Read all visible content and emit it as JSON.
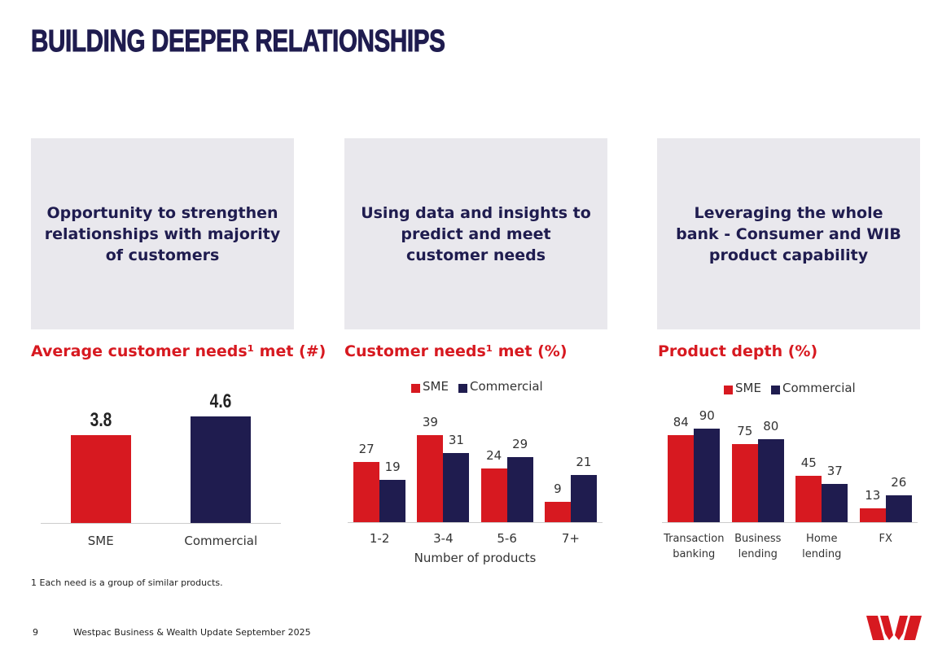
{
  "header": {
    "title": "BUILDING DEEPER RELATIONSHIPS"
  },
  "panels": [
    "Opportunity to strengthen relationships with majority of customers",
    "Using data and insights to predict and meet customer needs",
    "Leveraging the whole bank - Consumer and WIB product capability"
  ],
  "chart_data": [
    {
      "type": "bar",
      "title": "Average customer needs¹ met (#)",
      "categories": [
        "SME",
        "Commercial"
      ],
      "values": [
        3.8,
        4.6
      ],
      "colors": [
        "#d71920",
        "#1f1c4f"
      ]
    },
    {
      "type": "grouped-bar",
      "title": "Customer needs¹ met (%)",
      "categories": [
        "1-2",
        "3-4",
        "5-6",
        "7+"
      ],
      "x_label": "Number of products",
      "legend": "top",
      "series": [
        {
          "name": "SME",
          "color": "#d71920",
          "values": [
            27,
            39,
            24,
            9
          ]
        },
        {
          "name": "Commercial",
          "color": "#1f1c4f",
          "values": [
            19,
            31,
            29,
            21
          ]
        }
      ]
    },
    {
      "type": "grouped-bar",
      "title": "Product depth (%)",
      "categories": [
        "Transaction banking",
        "Business lending",
        "Home lending",
        "FX"
      ],
      "legend": "top",
      "series": [
        {
          "name": "SME",
          "color": "#d71920",
          "values": [
            84,
            75,
            45,
            13
          ]
        },
        {
          "name": "Commercial",
          "color": "#1f1c4f",
          "values": [
            90,
            80,
            37,
            26
          ]
        }
      ]
    }
  ],
  "footnote": "1 Each need is a group of similar products.",
  "footer": {
    "page": "9",
    "text": "Westpac Business & Wealth Update September 2025"
  }
}
